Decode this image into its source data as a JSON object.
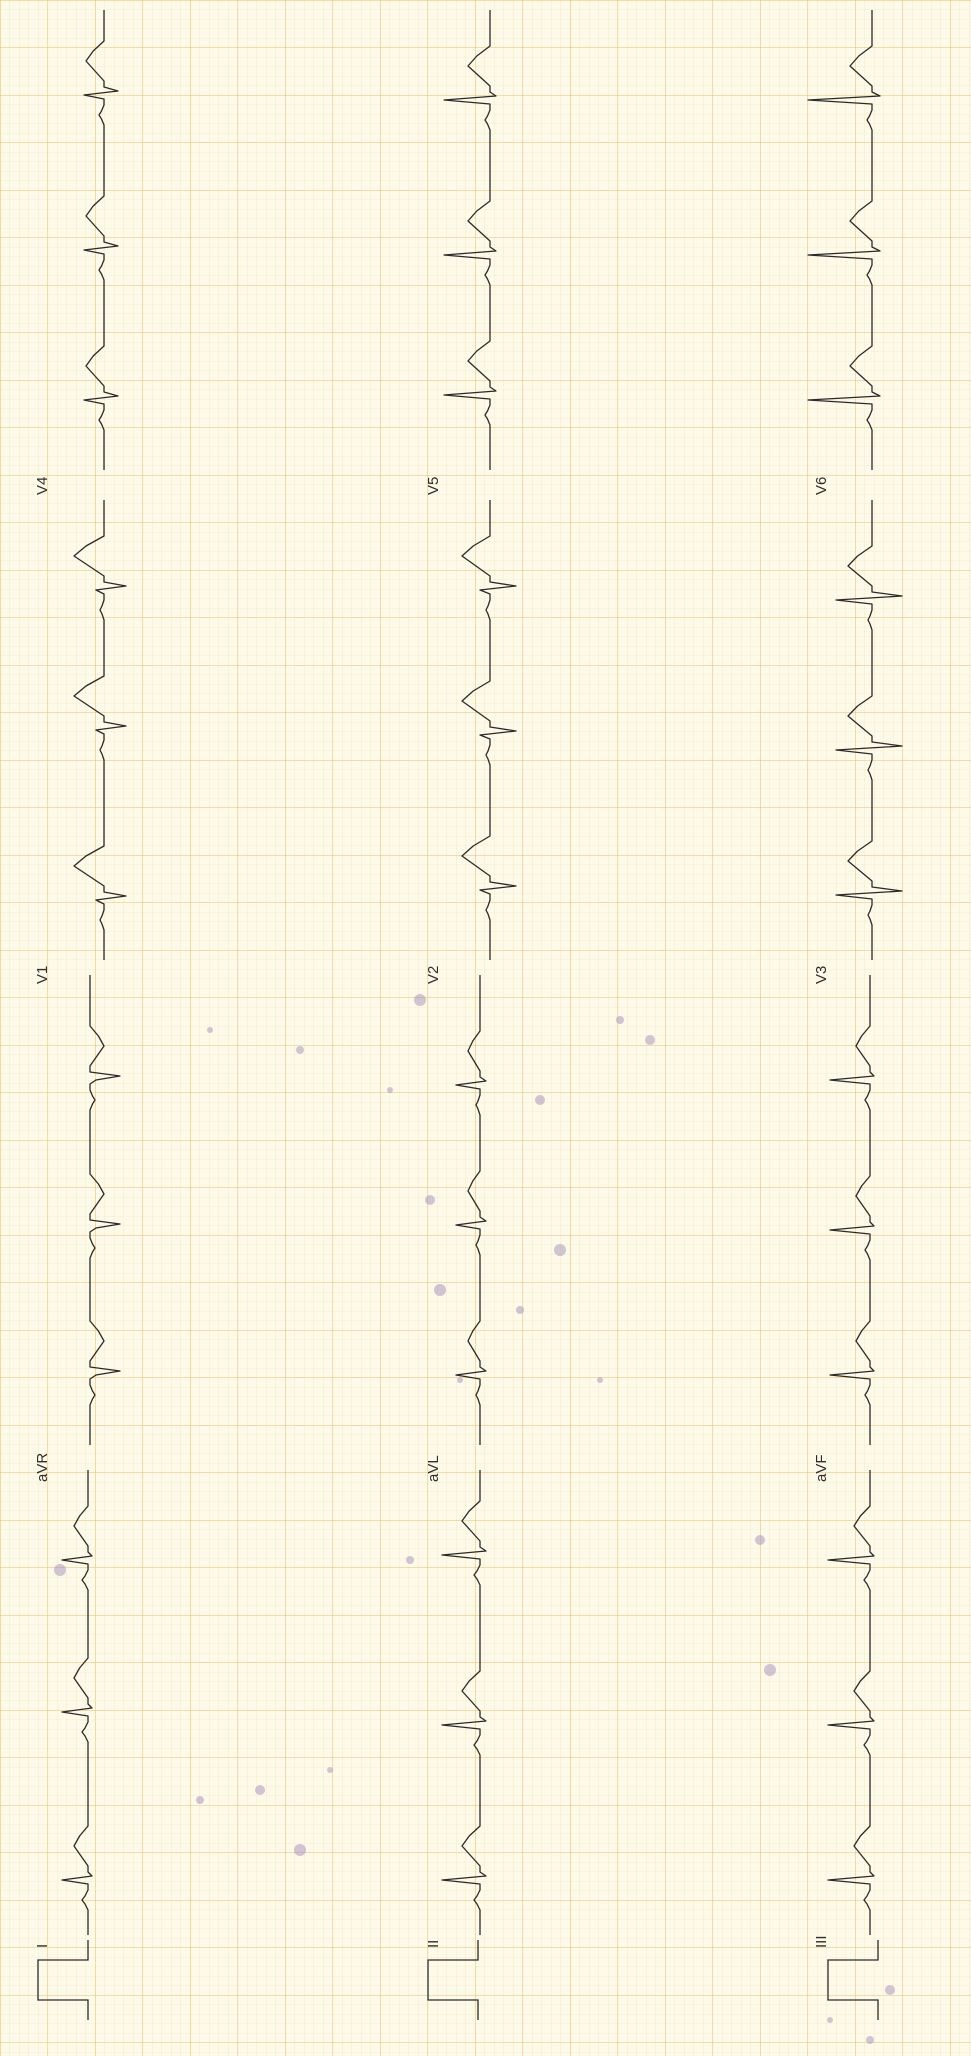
{
  "colors": {
    "paper": "#fdfaea",
    "grid_minor": "#f3dfae",
    "grid_major": "#e8bf6a",
    "trace": "#2a2a2a",
    "label": "#2e2e2e",
    "smudge": "#9c82b8"
  },
  "leads": {
    "I": "I",
    "II": "II",
    "III": "III",
    "aVR": "aVR",
    "aVL": "aVL",
    "aVF": "aVF",
    "V1": "V1",
    "V2": "V2",
    "V3": "V3",
    "V4": "V4",
    "V5": "V5",
    "V6": "V6"
  }
}
